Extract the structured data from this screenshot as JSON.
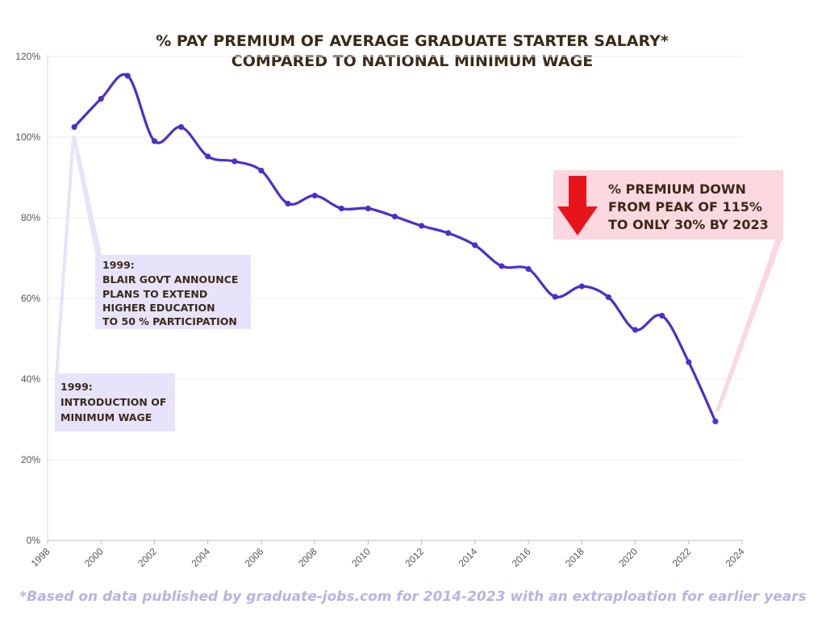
{
  "chart_data": {
    "type": "line",
    "title": [
      "% PAY PREMIUM OF AVERAGE GRADUATE STARTER SALARY*",
      "COMPARED TO NATIONAL MINIMUM WAGE"
    ],
    "xlabel": "",
    "ylabel": "",
    "xlim": [
      1998,
      2024
    ],
    "ylim": [
      0,
      120
    ],
    "x_ticks": [
      "1998",
      "2000",
      "2002",
      "2004",
      "2006",
      "2008",
      "2010",
      "2012",
      "2014",
      "2016",
      "2018",
      "2020",
      "2022",
      "2024"
    ],
    "y_ticks": [
      "0%",
      "20%",
      "40%",
      "60%",
      "80%",
      "100%",
      "120%"
    ],
    "grid": true,
    "series": [
      {
        "color": "#4b2fce",
        "x": [
          1999,
          2000,
          2001,
          2002,
          2003,
          2004,
          2005,
          2006,
          2007,
          2008,
          2009,
          2010,
          2011,
          2012,
          2013,
          2014,
          2015,
          2016,
          2017,
          2018,
          2019,
          2020,
          2021,
          2022,
          2023
        ],
        "y": [
          102.5,
          109.5,
          115.2,
          99,
          102.5,
          95.2,
          94,
          91.7,
          83.5,
          85.5,
          82.3,
          82.3,
          80.3,
          78,
          76.2,
          73.2,
          68,
          67.3,
          60.4,
          63,
          60.3,
          52.2,
          55.7,
          44.2,
          29.5
        ]
      }
    ],
    "annotations": [
      {
        "id": "blair",
        "lines": [
          "1999:",
          "BLAIR GOVT ANNOUNCE",
          "PLANS TO EXTEND",
          "HIGHER EDUCATION",
          "TO 50 % PARTICIPATION"
        ],
        "color": "#e6e3fb"
      },
      {
        "id": "minwage",
        "lines": [
          "1999:",
          "INTRODUCTION OF",
          "MINIMUM WAGE"
        ],
        "color": "#e6e3fb"
      },
      {
        "id": "premium",
        "lines": [
          "% PREMIUM DOWN",
          "FROM PEAK OF 115%",
          "TO ONLY 30% BY 2023"
        ],
        "color": "#fbd7df",
        "arrow_color": "#e8141c"
      }
    ],
    "footnote": "*Based on data published by graduate-jobs.com for 2014-2023 with an extraploation for earlier years"
  }
}
